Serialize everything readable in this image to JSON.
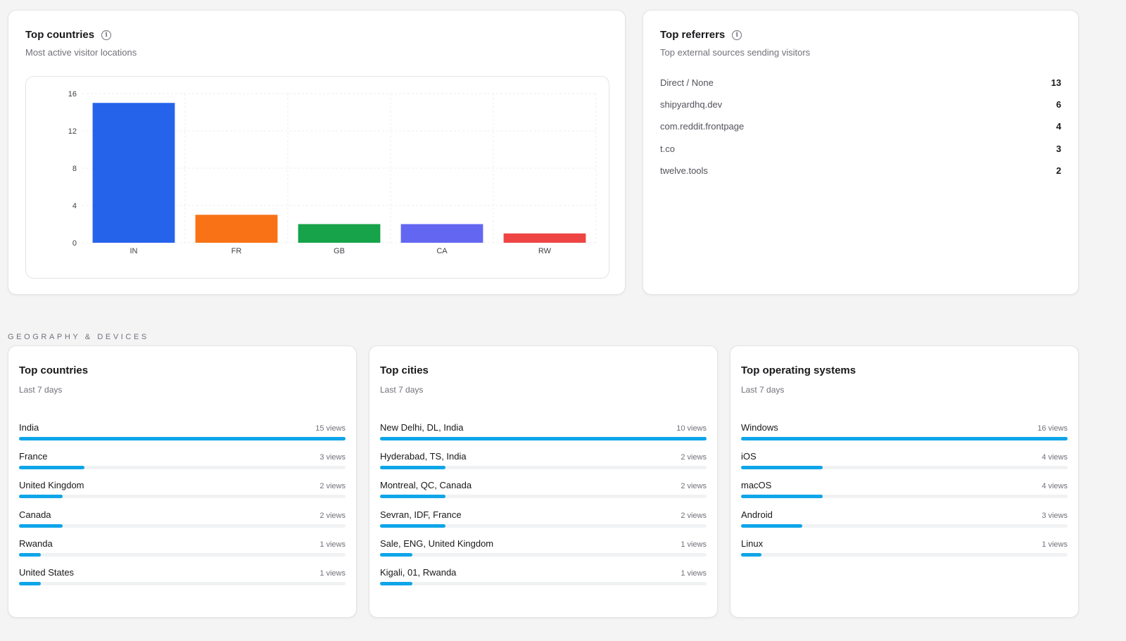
{
  "top_countries_chart": {
    "title": "Top countries",
    "subtitle": "Most active visitor locations"
  },
  "chart_data": {
    "type": "bar",
    "categories": [
      "IN",
      "FR",
      "GB",
      "CA",
      "RW"
    ],
    "values": [
      15,
      3,
      2,
      2,
      1
    ],
    "colors": [
      "#2563eb",
      "#f97316",
      "#16a34a",
      "#6366f1",
      "#ef4444"
    ],
    "yticks": [
      "16",
      "12",
      "8",
      "4",
      "0"
    ],
    "ylim": [
      0,
      16
    ],
    "grid": true
  },
  "top_referrers": {
    "title": "Top referrers",
    "subtitle": "Top external sources sending visitors",
    "items": [
      {
        "name": "Direct / None",
        "count": "13"
      },
      {
        "name": "shipyardhq.dev",
        "count": "6"
      },
      {
        "name": "com.reddit.frontpage",
        "count": "4"
      },
      {
        "name": "t.co",
        "count": "3"
      },
      {
        "name": "twelve.tools",
        "count": "2"
      }
    ]
  },
  "section_label": "GEOGRAPHY & DEVICES",
  "geo_countries": {
    "title": "Top countries",
    "subtitle": "Last 7 days",
    "items": [
      {
        "label": "India",
        "views": "15 views",
        "fraction": 1.0
      },
      {
        "label": "France",
        "views": "3 views",
        "fraction": 0.2
      },
      {
        "label": "United Kingdom",
        "views": "2 views",
        "fraction": 0.133
      },
      {
        "label": "Canada",
        "views": "2 views",
        "fraction": 0.133
      },
      {
        "label": "Rwanda",
        "views": "1 views",
        "fraction": 0.067
      },
      {
        "label": "United States",
        "views": "1 views",
        "fraction": 0.067
      }
    ]
  },
  "geo_cities": {
    "title": "Top cities",
    "subtitle": "Last 7 days",
    "items": [
      {
        "label": "New Delhi, DL, India",
        "views": "10 views",
        "fraction": 1.0
      },
      {
        "label": "Hyderabad, TS, India",
        "views": "2 views",
        "fraction": 0.2
      },
      {
        "label": "Montreal, QC, Canada",
        "views": "2 views",
        "fraction": 0.2
      },
      {
        "label": "Sevran, IDF, France",
        "views": "2 views",
        "fraction": 0.2
      },
      {
        "label": "Sale, ENG, United Kingdom",
        "views": "1 views",
        "fraction": 0.1
      },
      {
        "label": "Kigali, 01, Rwanda",
        "views": "1 views",
        "fraction": 0.1
      }
    ]
  },
  "geo_os": {
    "title": "Top operating systems",
    "subtitle": "Last 7 days",
    "items": [
      {
        "label": "Windows",
        "views": "16 views",
        "fraction": 1.0
      },
      {
        "label": "iOS",
        "views": "4 views",
        "fraction": 0.25
      },
      {
        "label": "macOS",
        "views": "4 views",
        "fraction": 0.25
      },
      {
        "label": "Android",
        "views": "3 views",
        "fraction": 0.1875
      },
      {
        "label": "Linux",
        "views": "1 views",
        "fraction": 0.0625
      }
    ]
  }
}
